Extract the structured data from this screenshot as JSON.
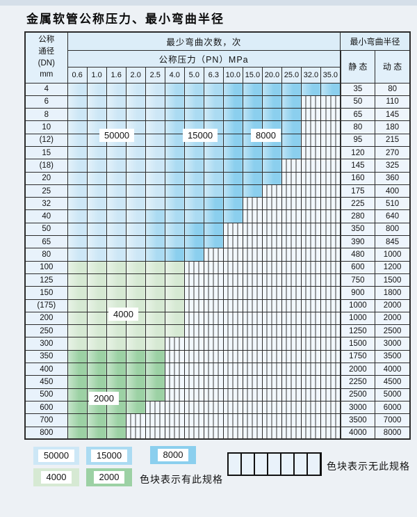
{
  "title": "金属软管公称压力、最小弯曲半径",
  "colors": {
    "zone_50000": "#cde7f6",
    "zone_15000": "#abdbf2",
    "zone_8000": "#8bcfee",
    "zone_4000": "#d6e9d3",
    "zone_2000": "#9cd1a4",
    "grid_line": "#2b2b2b",
    "no_spec_bg": "#f2f8fd"
  },
  "table": {
    "corner": [
      "公称",
      "通径",
      "(DN)",
      "mm"
    ],
    "header_bend_times": "最少弯曲次数，次",
    "header_pressure": "公称压力（PN）MPa",
    "header_radius": "最小弯曲半径",
    "static_label": "静 态",
    "dynamic_label": "动 态",
    "pressures": [
      "0.6",
      "1.0",
      "1.6",
      "2.0",
      "2.5",
      "4.0",
      "5.0",
      "6.3",
      "10.0",
      "15.0",
      "20.0",
      "25.0",
      "32.0",
      "35.0"
    ],
    "rows": [
      {
        "dn": "4",
        "static_val": "35",
        "dynamic_val": "80",
        "zones": [
          [
            5,
            "b1"
          ],
          [
            8,
            "b2"
          ],
          [
            14,
            "b3"
          ]
        ]
      },
      {
        "dn": "6",
        "static_val": "50",
        "dynamic_val": "110",
        "zones": [
          [
            5,
            "b1"
          ],
          [
            8,
            "b2"
          ],
          [
            12,
            "b3"
          ]
        ]
      },
      {
        "dn": "8",
        "static_val": "65",
        "dynamic_val": "145",
        "zones": [
          [
            5,
            "b1"
          ],
          [
            8,
            "b2"
          ],
          [
            12,
            "b3"
          ]
        ]
      },
      {
        "dn": "10",
        "static_val": "80",
        "dynamic_val": "180",
        "zones": [
          [
            5,
            "b1"
          ],
          [
            8,
            "b2"
          ],
          [
            12,
            "b3"
          ]
        ]
      },
      {
        "dn": "(12)",
        "static_val": "95",
        "dynamic_val": "215",
        "zones": [
          [
            5,
            "b1"
          ],
          [
            8,
            "b2"
          ],
          [
            12,
            "b3"
          ]
        ]
      },
      {
        "dn": "15",
        "static_val": "120",
        "dynamic_val": "270",
        "zones": [
          [
            5,
            "b1"
          ],
          [
            8,
            "b2"
          ],
          [
            12,
            "b3"
          ]
        ]
      },
      {
        "dn": "(18)",
        "static_val": "145",
        "dynamic_val": "325",
        "zones": [
          [
            5,
            "b1"
          ],
          [
            8,
            "b2"
          ],
          [
            11,
            "b3"
          ]
        ]
      },
      {
        "dn": "20",
        "static_val": "160",
        "dynamic_val": "360",
        "zones": [
          [
            5,
            "b1"
          ],
          [
            8,
            "b2"
          ],
          [
            11,
            "b3"
          ]
        ]
      },
      {
        "dn": "25",
        "static_val": "175",
        "dynamic_val": "400",
        "zones": [
          [
            5,
            "b1"
          ],
          [
            8,
            "b2"
          ],
          [
            10,
            "b3"
          ]
        ]
      },
      {
        "dn": "32",
        "static_val": "225",
        "dynamic_val": "510",
        "zones": [
          [
            5,
            "b1"
          ],
          [
            7,
            "b2"
          ],
          [
            9,
            "b3"
          ]
        ]
      },
      {
        "dn": "40",
        "static_val": "280",
        "dynamic_val": "640",
        "zones": [
          [
            4,
            "b1"
          ],
          [
            7,
            "b2"
          ],
          [
            9,
            "b3"
          ]
        ]
      },
      {
        "dn": "50",
        "static_val": "350",
        "dynamic_val": "800",
        "zones": [
          [
            4,
            "b1"
          ],
          [
            6,
            "b2"
          ],
          [
            8,
            "b3"
          ]
        ]
      },
      {
        "dn": "65",
        "static_val": "390",
        "dynamic_val": "845",
        "zones": [
          [
            4,
            "b1"
          ],
          [
            6,
            "b2"
          ],
          [
            8,
            "b3"
          ]
        ]
      },
      {
        "dn": "80",
        "static_val": "480",
        "dynamic_val": "1000",
        "zones": [
          [
            4,
            "b1"
          ],
          [
            5,
            "b2"
          ],
          [
            7,
            "b3"
          ]
        ]
      },
      {
        "dn": "100",
        "static_val": "600",
        "dynamic_val": "1200",
        "zones": [
          [
            6,
            "g1"
          ]
        ]
      },
      {
        "dn": "125",
        "static_val": "750",
        "dynamic_val": "1500",
        "zones": [
          [
            6,
            "g1"
          ]
        ]
      },
      {
        "dn": "150",
        "static_val": "900",
        "dynamic_val": "1800",
        "zones": [
          [
            6,
            "g1"
          ]
        ]
      },
      {
        "dn": "(175)",
        "static_val": "1000",
        "dynamic_val": "2000",
        "zones": [
          [
            6,
            "g1"
          ]
        ]
      },
      {
        "dn": "200",
        "static_val": "1000",
        "dynamic_val": "2000",
        "zones": [
          [
            6,
            "g1"
          ]
        ]
      },
      {
        "dn": "250",
        "static_val": "1250",
        "dynamic_val": "2500",
        "zones": [
          [
            6,
            "g1"
          ]
        ]
      },
      {
        "dn": "300",
        "static_val": "1500",
        "dynamic_val": "3000",
        "zones": [
          [
            5,
            "g1"
          ]
        ]
      },
      {
        "dn": "350",
        "static_val": "1750",
        "dynamic_val": "3500",
        "zones": [
          [
            5,
            "g2"
          ]
        ]
      },
      {
        "dn": "400",
        "static_val": "2000",
        "dynamic_val": "4000",
        "zones": [
          [
            5,
            "g2"
          ]
        ]
      },
      {
        "dn": "450",
        "static_val": "2250",
        "dynamic_val": "4500",
        "zones": [
          [
            5,
            "g2"
          ]
        ]
      },
      {
        "dn": "500",
        "static_val": "2500",
        "dynamic_val": "5000",
        "zones": [
          [
            5,
            "g2"
          ]
        ]
      },
      {
        "dn": "600",
        "static_val": "3000",
        "dynamic_val": "6000",
        "zones": [
          [
            4,
            "g2"
          ]
        ]
      },
      {
        "dn": "700",
        "static_val": "3500",
        "dynamic_val": "7000",
        "zones": [
          [
            3,
            "g2"
          ]
        ]
      },
      {
        "dn": "800",
        "static_val": "4000",
        "dynamic_val": "8000",
        "zones": [
          [
            3,
            "g2"
          ]
        ]
      }
    ]
  },
  "overlay_labels": [
    {
      "text": "50000"
    },
    {
      "text": "15000"
    },
    {
      "text": "8000"
    },
    {
      "text": "4000"
    },
    {
      "text": "2000"
    }
  ],
  "legend": {
    "items": [
      {
        "value": "50000",
        "zone": "b1"
      },
      {
        "value": "15000",
        "zone": "b2"
      },
      {
        "value": "8000",
        "zone": "b3"
      },
      {
        "value": "4000",
        "zone": "g1"
      },
      {
        "value": "2000",
        "zone": "g2"
      }
    ],
    "has_spec_text": "色块表示有此规格",
    "no_spec_text": "色块表示无此规格"
  }
}
